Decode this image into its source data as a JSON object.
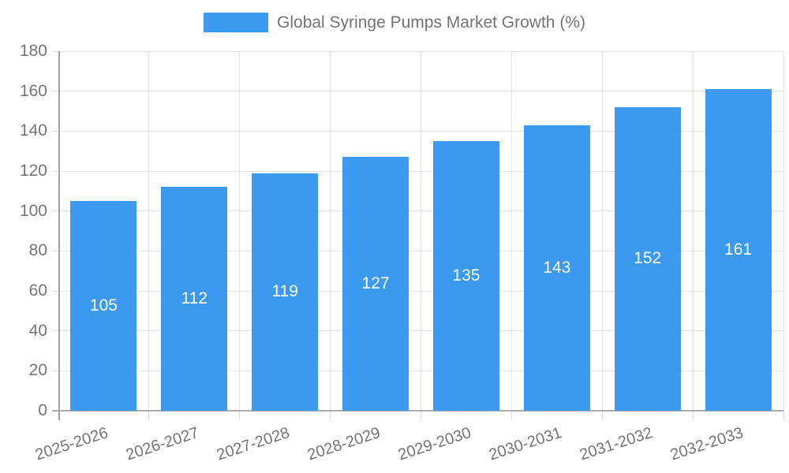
{
  "legend": {
    "label": "Global Syringe Pumps Market Growth (%)"
  },
  "chart_data": {
    "type": "bar",
    "title": "Global Syringe Pumps Market Growth (%)",
    "categories": [
      "2025-2026",
      "2026-2027",
      "2027-2028",
      "2028-2029",
      "2029-2030",
      "2030-2031",
      "2031-2032",
      "2032-2033"
    ],
    "values": [
      105,
      112,
      119,
      127,
      135,
      143,
      152,
      161
    ],
    "xlabel": "",
    "ylabel": "",
    "ylim": [
      0,
      180
    ],
    "yticks": [
      0,
      20,
      40,
      60,
      80,
      100,
      120,
      140,
      160,
      180
    ],
    "grid": true,
    "legend_position": "top",
    "bar_labels_inside": true,
    "colors": {
      "bar": "#3b9af0",
      "bar_label": "#ffffff",
      "axis_text": "#757575",
      "legend_text": "#737373",
      "gridline": "#e3e3e3",
      "axis_line": "#a0a0a0"
    }
  }
}
